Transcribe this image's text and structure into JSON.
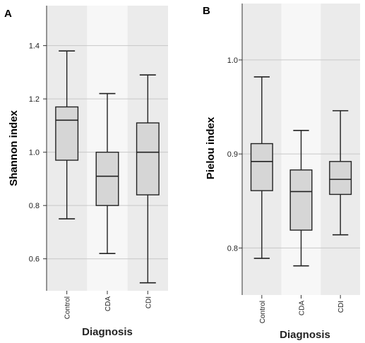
{
  "chart_data": [
    {
      "type": "box",
      "panel_label": "A",
      "xlabel": "Diagnosis",
      "ylabel": "Shannon index",
      "categories": [
        "Control",
        "CDA",
        "CDI"
      ],
      "ylim": [
        0.48,
        1.55
      ],
      "yticks": [
        0.6,
        0.8,
        1.0,
        1.2,
        1.4
      ],
      "ytick_labels": [
        "0.6",
        "0.8",
        "1.0",
        "1.2",
        "1.4"
      ],
      "grid": true,
      "boxes": [
        {
          "category": "Control",
          "min": 0.75,
          "q1": 0.97,
          "median": 1.12,
          "q3": 1.17,
          "max": 1.38
        },
        {
          "category": "CDA",
          "min": 0.62,
          "q1": 0.8,
          "median": 0.91,
          "q3": 1.0,
          "max": 1.22
        },
        {
          "category": "CDI",
          "min": 0.51,
          "q1": 0.84,
          "median": 1.0,
          "q3": 1.11,
          "max": 1.29
        }
      ]
    },
    {
      "type": "box",
      "panel_label": "B",
      "xlabel": "Diagnosis",
      "ylabel": "Pielou index",
      "categories": [
        "Control",
        "CDA",
        "CDI"
      ],
      "ylim": [
        0.75,
        1.06
      ],
      "yticks": [
        0.8,
        0.9,
        1.0
      ],
      "ytick_labels": [
        "0.8",
        "0.9",
        "1.0"
      ],
      "grid": true,
      "boxes": [
        {
          "category": "Control",
          "min": 0.789,
          "q1": 0.861,
          "median": 0.892,
          "q3": 0.911,
          "max": 0.982
        },
        {
          "category": "CDA",
          "min": 0.781,
          "q1": 0.819,
          "median": 0.86,
          "q3": 0.883,
          "max": 0.925
        },
        {
          "category": "CDI",
          "min": 0.814,
          "q1": 0.857,
          "median": 0.873,
          "q3": 0.892,
          "max": 0.946
        }
      ]
    }
  ]
}
